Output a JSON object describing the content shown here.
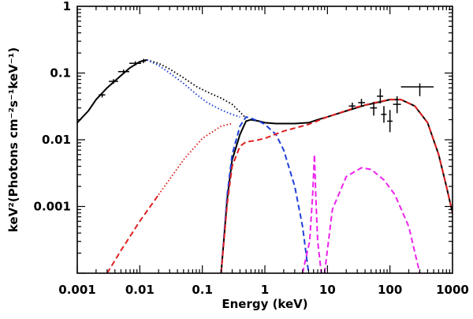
{
  "chart_data": {
    "type": "line",
    "title": "",
    "xlabel": "Energy (keV)",
    "ylabel": "keV²(Photons cm⁻²s⁻¹keV⁻¹)",
    "xscale": "log",
    "yscale": "log",
    "xlim": [
      0.001,
      1000
    ],
    "ylim": [
      0.0001,
      1
    ],
    "x_ticks": [
      {
        "value": 0.001,
        "label": "0.001"
      },
      {
        "value": 0.01,
        "label": "0.01"
      },
      {
        "value": 0.1,
        "label": "0.1"
      },
      {
        "value": 1,
        "label": "1"
      },
      {
        "value": 10,
        "label": "10"
      },
      {
        "value": 100,
        "label": "100"
      },
      {
        "value": 1000,
        "label": "1000"
      }
    ],
    "y_ticks": [
      {
        "value": 0.001,
        "label": "0.001"
      },
      {
        "value": 0.01,
        "label": "0.01"
      },
      {
        "value": 0.1,
        "label": "0.1"
      },
      {
        "value": 1,
        "label": "1"
      }
    ],
    "grid": false,
    "legend": "none",
    "colors": {
      "black": "#000000",
      "blue": "#1f3fd8",
      "red": "#e02020",
      "magenta": "#ee22ee"
    },
    "series": [
      {
        "style": "solid",
        "color": "#000000",
        "points": [
          [
            0.001,
            0.018
          ],
          [
            0.0015,
            0.027
          ],
          [
            0.002,
            0.04
          ],
          [
            0.003,
            0.06
          ],
          [
            0.005,
            0.092
          ],
          [
            0.007,
            0.12
          ],
          [
            0.01,
            0.148
          ],
          [
            0.013,
            0.157
          ]
        ]
      },
      {
        "style": "dotted",
        "color": "#000000",
        "points": [
          [
            0.013,
            0.157
          ],
          [
            0.02,
            0.14
          ],
          [
            0.03,
            0.115
          ],
          [
            0.05,
            0.085
          ],
          [
            0.08,
            0.063
          ],
          [
            0.12,
            0.052
          ],
          [
            0.2,
            0.042
          ],
          [
            0.3,
            0.034
          ],
          [
            0.4,
            0.026
          ],
          [
            0.5,
            0.021
          ]
        ]
      },
      {
        "style": "solid",
        "color": "#000000",
        "points": [
          [
            0.2,
            0.0001
          ],
          [
            0.25,
            0.0013
          ],
          [
            0.3,
            0.005
          ],
          [
            0.4,
            0.012
          ],
          [
            0.5,
            0.019
          ],
          [
            0.6,
            0.02
          ],
          [
            0.8,
            0.019
          ],
          [
            1,
            0.018
          ],
          [
            1.5,
            0.0175
          ],
          [
            3,
            0.0175
          ],
          [
            5,
            0.018
          ],
          [
            7,
            0.02
          ],
          [
            10,
            0.022
          ],
          [
            20,
            0.027
          ],
          [
            40,
            0.033
          ],
          [
            70,
            0.037
          ],
          [
            100,
            0.04
          ],
          [
            150,
            0.04
          ],
          [
            250,
            0.032
          ],
          [
            400,
            0.018
          ],
          [
            600,
            0.006
          ],
          [
            800,
            0.002
          ],
          [
            1000,
            0.0008
          ]
        ]
      },
      {
        "style": "dotted",
        "color": "#1f3fd8",
        "points": [
          [
            0.013,
            0.157
          ],
          [
            0.02,
            0.13
          ],
          [
            0.03,
            0.1
          ],
          [
            0.05,
            0.07
          ],
          [
            0.08,
            0.048
          ],
          [
            0.12,
            0.036
          ],
          [
            0.2,
            0.028
          ],
          [
            0.3,
            0.024
          ],
          [
            0.4,
            0.022
          ]
        ]
      },
      {
        "style": "dashed",
        "color": "#1f3fd8",
        "points": [
          [
            0.2,
            0.0001
          ],
          [
            0.25,
            0.0015
          ],
          [
            0.3,
            0.006
          ],
          [
            0.4,
            0.016
          ],
          [
            0.5,
            0.022
          ],
          [
            0.6,
            0.021
          ],
          [
            0.8,
            0.019
          ],
          [
            1,
            0.017
          ],
          [
            1.5,
            0.012
          ],
          [
            2,
            0.007
          ],
          [
            3,
            0.002
          ],
          [
            4,
            0.0005
          ],
          [
            5,
            0.0001
          ]
        ]
      },
      {
        "style": "dashed",
        "color": "#e02020",
        "points": [
          [
            0.003,
            0.0001
          ],
          [
            0.005,
            0.00022
          ],
          [
            0.01,
            0.0006
          ],
          [
            0.02,
            0.0015
          ]
        ]
      },
      {
        "style": "dotted",
        "color": "#e02020",
        "points": [
          [
            0.02,
            0.0015
          ],
          [
            0.05,
            0.005
          ],
          [
            0.1,
            0.0105
          ],
          [
            0.2,
            0.016
          ],
          [
            0.3,
            0.0175
          ]
        ]
      },
      {
        "style": "dashed",
        "color": "#e02020",
        "points": [
          [
            0.2,
            0.0001
          ],
          [
            0.25,
            0.0011
          ],
          [
            0.3,
            0.004
          ],
          [
            0.4,
            0.008
          ],
          [
            0.5,
            0.0093
          ],
          [
            0.7,
            0.0097
          ],
          [
            1,
            0.0105
          ],
          [
            2,
            0.0135
          ],
          [
            5,
            0.017
          ],
          [
            10,
            0.022
          ],
          [
            30,
            0.031
          ],
          [
            50,
            0.035
          ],
          [
            100,
            0.04
          ],
          [
            150,
            0.04
          ],
          [
            250,
            0.032
          ],
          [
            400,
            0.018
          ],
          [
            600,
            0.006
          ],
          [
            800,
            0.002
          ],
          [
            1000,
            0.0008
          ]
        ]
      },
      {
        "style": "dashed",
        "color": "#ee22ee",
        "points": [
          [
            4,
            0.0001
          ],
          [
            5.2,
            0.0003
          ],
          [
            5.8,
            0.0015
          ],
          [
            6.2,
            0.006
          ],
          [
            6.5,
            0.0015
          ],
          [
            7,
            0.0003
          ],
          [
            8,
            0.0001
          ]
        ]
      },
      {
        "style": "dashed",
        "color": "#ee22ee",
        "points": [
          [
            9,
            0.0001
          ],
          [
            12,
            0.0009
          ],
          [
            20,
            0.0028
          ],
          [
            35,
            0.0038
          ],
          [
            50,
            0.0036
          ],
          [
            80,
            0.0025
          ],
          [
            120,
            0.0015
          ],
          [
            200,
            0.0005
          ],
          [
            300,
            0.0001
          ]
        ]
      }
    ],
    "data_points": [
      {
        "x": 0.0025,
        "y": 0.047,
        "xerr": [
          0.0022,
          0.0028
        ],
        "yerr": [
          0.043,
          0.051
        ]
      },
      {
        "x": 0.0038,
        "y": 0.075,
        "xerr": [
          0.0032,
          0.0045
        ],
        "yerr": [
          0.069,
          0.081
        ]
      },
      {
        "x": 0.0055,
        "y": 0.105,
        "xerr": [
          0.0045,
          0.0068
        ],
        "yerr": [
          0.097,
          0.113
        ]
      },
      {
        "x": 0.0085,
        "y": 0.14,
        "xerr": [
          0.0068,
          0.0105
        ],
        "yerr": [
          0.13,
          0.15
        ]
      },
      {
        "x": 0.0115,
        "y": 0.152,
        "xerr": [
          0.0105,
          0.0125
        ],
        "yerr": [
          0.141,
          0.163
        ]
      },
      {
        "x": 25,
        "y": 0.032,
        "xerr": [
          22,
          28
        ],
        "yerr": [
          0.028,
          0.036
        ]
      },
      {
        "x": 35,
        "y": 0.036,
        "xerr": [
          31,
          40
        ],
        "yerr": [
          0.031,
          0.041
        ]
      },
      {
        "x": 55,
        "y": 0.03,
        "xerr": [
          48,
          62
        ],
        "yerr": [
          0.023,
          0.037
        ]
      },
      {
        "x": 70,
        "y": 0.045,
        "xerr": [
          62,
          78
        ],
        "yerr": [
          0.035,
          0.058
        ]
      },
      {
        "x": 80,
        "y": 0.024,
        "xerr": [
          72,
          88
        ],
        "yerr": [
          0.018,
          0.032
        ]
      },
      {
        "x": 100,
        "y": 0.019,
        "xerr": [
          90,
          110
        ],
        "yerr": [
          0.013,
          0.028
        ]
      },
      {
        "x": 130,
        "y": 0.034,
        "xerr": [
          112,
          150
        ],
        "yerr": [
          0.025,
          0.045
        ]
      },
      {
        "x": 300,
        "y": 0.062,
        "xerr": [
          150,
          500
        ],
        "yerr": [
          0.045,
          0.07
        ]
      }
    ]
  }
}
